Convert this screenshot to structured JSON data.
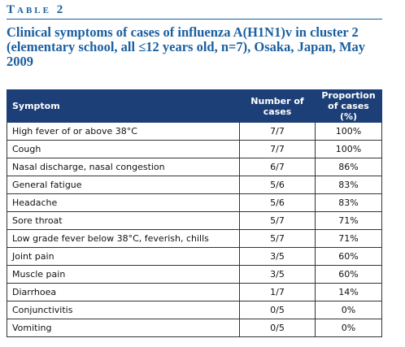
{
  "header": {
    "label": "Table 2",
    "title": "Clinical symptoms of cases of influenza A(H1N1)v in cluster 2 (elementary school, all ≤12 years old, n=7), Osaka, Japan, May 2009"
  },
  "table": {
    "columns": [
      "Symptom",
      "Number of cases",
      "Proportion of cases (%)"
    ],
    "rows": [
      [
        "High fever of or above 38°C",
        "7/7",
        "100%"
      ],
      [
        "Cough",
        "7/7",
        "100%"
      ],
      [
        "Nasal discharge, nasal congestion",
        "6/7",
        "86%"
      ],
      [
        "General fatigue",
        "5/6",
        "83%"
      ],
      [
        "Headache",
        "5/6",
        "83%"
      ],
      [
        "Sore throat",
        "5/7",
        "71%"
      ],
      [
        "Low grade fever below 38°C, feverish, chills",
        "5/7",
        "71%"
      ],
      [
        "Joint pain",
        "3/5",
        "60%"
      ],
      [
        "Muscle pain",
        "3/5",
        "60%"
      ],
      [
        "Diarrhoea",
        "1/7",
        "14%"
      ],
      [
        "Conjunctivitis",
        "0/5",
        "0%"
      ],
      [
        "Vomiting",
        "0/5",
        "0%"
      ]
    ]
  }
}
